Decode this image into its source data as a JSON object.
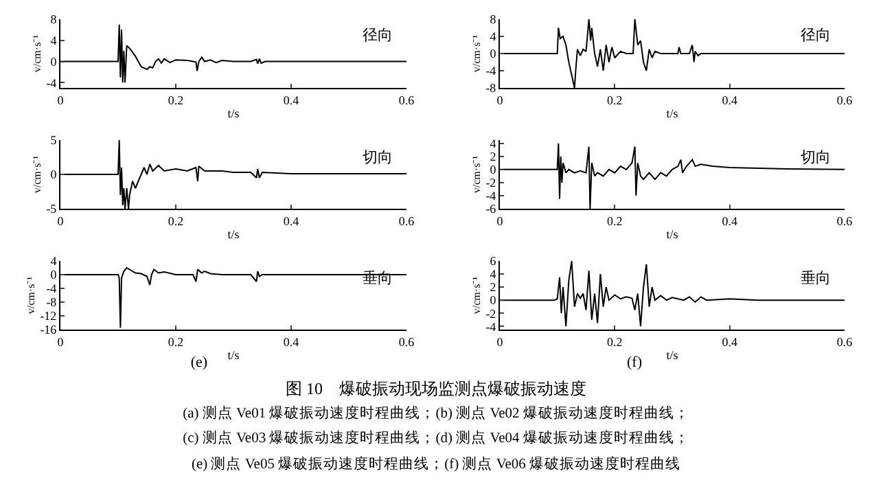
{
  "chart_data": [
    {
      "type": "line",
      "xlabel": "t/s",
      "ylabel": "v/cm·s⁻¹",
      "annotations": [
        "径向"
      ],
      "xlim": [
        0,
        0.6
      ],
      "xticks": [
        0,
        0.2,
        0.4,
        0.6
      ],
      "ylim": [
        -5,
        8
      ],
      "yticks": [
        -4,
        0,
        4,
        8
      ],
      "x": [
        0,
        0.1,
        0.102,
        0.104,
        0.106,
        0.108,
        0.11,
        0.112,
        0.115,
        0.12,
        0.13,
        0.14,
        0.15,
        0.155,
        0.16,
        0.165,
        0.17,
        0.175,
        0.18,
        0.19,
        0.2,
        0.22,
        0.235,
        0.237,
        0.24,
        0.245,
        0.25,
        0.26,
        0.27,
        0.28,
        0.3,
        0.33,
        0.34,
        0.342,
        0.345,
        0.348,
        0.355,
        0.6
      ],
      "series": [
        {
          "color": "#000000",
          "values": [
            0,
            0,
            7,
            -3,
            6,
            -4,
            2,
            -4,
            3,
            2.5,
            1,
            -1,
            -1.5,
            -1,
            -1.2,
            0,
            0.5,
            -0.3,
            0.5,
            -0.2,
            0.3,
            0.2,
            -0.1,
            -1.8,
            0,
            0.8,
            0,
            0.3,
            -0.2,
            0.2,
            0,
            0,
            0.4,
            -0.4,
            0.5,
            -0.3,
            0,
            0
          ]
        }
      ]
    },
    {
      "type": "line",
      "xlabel": "t/s",
      "ylabel": "v/cm·s⁻¹",
      "annotations": [
        "径向"
      ],
      "xlim": [
        0,
        0.6
      ],
      "xticks": [
        0,
        0.2,
        0.4,
        0.6
      ],
      "ylim": [
        -8,
        8
      ],
      "yticks": [
        -8,
        -4,
        0,
        4,
        8
      ],
      "x": [
        0,
        0.1,
        0.102,
        0.105,
        0.11,
        0.115,
        0.12,
        0.125,
        0.13,
        0.132,
        0.135,
        0.14,
        0.145,
        0.15,
        0.155,
        0.158,
        0.16,
        0.165,
        0.17,
        0.175,
        0.18,
        0.185,
        0.19,
        0.195,
        0.2,
        0.21,
        0.22,
        0.232,
        0.235,
        0.24,
        0.245,
        0.25,
        0.255,
        0.26,
        0.265,
        0.27,
        0.28,
        0.31,
        0.312,
        0.315,
        0.33,
        0.335,
        0.338,
        0.34,
        0.345,
        0.35,
        0.6
      ],
      "series": [
        {
          "color": "#000000",
          "values": [
            0,
            0,
            6,
            3.5,
            4,
            2,
            -2,
            -5,
            -8,
            -4,
            1,
            -0.5,
            1,
            0.5,
            8,
            3,
            6,
            0,
            -3,
            1,
            -4,
            2,
            -2,
            1.5,
            -1,
            0.5,
            0,
            0,
            8,
            2,
            3,
            -2,
            -4,
            1,
            -1,
            0.5,
            0,
            0,
            1.5,
            0,
            0,
            2,
            -2,
            0.5,
            -0.5,
            0,
            0
          ]
        }
      ]
    },
    {
      "type": "line",
      "xlabel": "t/s",
      "ylabel": "v/cm·s⁻¹",
      "annotations": [
        "切向"
      ],
      "xlim": [
        0,
        0.6
      ],
      "xticks": [
        0,
        0.2,
        0.4,
        0.6
      ],
      "ylim": [
        -5,
        5
      ],
      "yticks": [
        -5,
        0,
        5
      ],
      "x": [
        0,
        0.1,
        0.102,
        0.104,
        0.106,
        0.108,
        0.11,
        0.112,
        0.115,
        0.118,
        0.12,
        0.125,
        0.13,
        0.14,
        0.145,
        0.15,
        0.155,
        0.16,
        0.17,
        0.18,
        0.2,
        0.22,
        0.235,
        0.238,
        0.24,
        0.25,
        0.28,
        0.3,
        0.33,
        0.34,
        0.342,
        0.345,
        0.35,
        0.4,
        0.6
      ],
      "series": [
        {
          "color": "#000000",
          "values": [
            0,
            0,
            5,
            -3,
            1,
            -4.5,
            -2,
            -5,
            -2,
            -5,
            -3,
            -1,
            -2,
            0,
            1,
            0,
            1.5,
            0.5,
            1.3,
            0.5,
            0.8,
            0.5,
            1,
            -1,
            1.2,
            0.5,
            0.5,
            0.3,
            0.3,
            -0.5,
            0.8,
            -0.5,
            0.3,
            0.1,
            0.1
          ]
        }
      ]
    },
    {
      "type": "line",
      "xlabel": "t/s",
      "ylabel": "v/cm·s⁻¹",
      "annotations": [
        "切向"
      ],
      "xlim": [
        0,
        0.6
      ],
      "xticks": [
        0,
        0.2,
        0.4,
        0.6
      ],
      "ylim": [
        -6,
        4.5
      ],
      "yticks": [
        -6,
        -4,
        -2,
        0,
        2,
        4
      ],
      "x": [
        0,
        0.1,
        0.102,
        0.104,
        0.106,
        0.108,
        0.11,
        0.115,
        0.12,
        0.13,
        0.14,
        0.15,
        0.155,
        0.157,
        0.16,
        0.165,
        0.17,
        0.18,
        0.19,
        0.2,
        0.21,
        0.22,
        0.23,
        0.235,
        0.237,
        0.24,
        0.245,
        0.25,
        0.26,
        0.27,
        0.28,
        0.29,
        0.3,
        0.31,
        0.315,
        0.318,
        0.325,
        0.335,
        0.34,
        0.35,
        0.37,
        0.4,
        0.5,
        0.6
      ],
      "series": [
        {
          "color": "#000000",
          "values": [
            0,
            0,
            4,
            -4.5,
            2,
            -2,
            1,
            -0.5,
            0,
            -0.5,
            -0.2,
            -0.5,
            3.5,
            -6,
            1,
            -1,
            -0.5,
            -1,
            0,
            -0.5,
            0.5,
            0,
            1,
            3.5,
            -4,
            1,
            -1,
            -1.5,
            -0.5,
            -1.5,
            -0.5,
            -1,
            0,
            0.5,
            1.5,
            -0.5,
            0.5,
            1.5,
            0.5,
            0.8,
            0.5,
            0.3,
            0.1,
            0
          ]
        }
      ]
    },
    {
      "type": "line",
      "xlabel": "t/s",
      "ylabel": "v/cm·s⁻¹",
      "annotations": [
        "垂向",
        "(e)"
      ],
      "xlim": [
        0,
        0.6
      ],
      "xticks": [
        0,
        0.2,
        0.4,
        0.6
      ],
      "ylim": [
        -16,
        4
      ],
      "yticks": [
        -16,
        -12,
        -8,
        -4,
        0,
        4
      ],
      "x": [
        0,
        0.1,
        0.102,
        0.104,
        0.106,
        0.11,
        0.115,
        0.12,
        0.13,
        0.14,
        0.15,
        0.155,
        0.158,
        0.162,
        0.17,
        0.18,
        0.2,
        0.23,
        0.235,
        0.238,
        0.245,
        0.25,
        0.26,
        0.28,
        0.33,
        0.34,
        0.342,
        0.345,
        0.35,
        0.6
      ],
      "series": [
        {
          "color": "#000000",
          "values": [
            0,
            0,
            -1,
            -15.5,
            -1,
            1,
            2,
            1.5,
            0.5,
            0.3,
            -0.5,
            -3,
            0,
            1.5,
            0.5,
            0.8,
            0,
            0,
            -2,
            1.5,
            0.5,
            1,
            0.3,
            0,
            0,
            -2,
            1,
            -0.5,
            0,
            0
          ]
        }
      ]
    },
    {
      "type": "line",
      "xlabel": "t/s",
      "ylabel": "v/cm·s⁻¹",
      "annotations": [
        "垂向",
        "(f)",
        "(a) 测点 Ve01 爆破振动速度时程曲线；(b) 测点 Ve02 爆破振动速度时程曲线；",
        "(c) 测点 Ve03 爆破振动速度时程曲线；(d) 测点 Ve04 爆破振动速度时程曲线；",
        "(e) 测点 Ve05 爆破振动速度时程曲线；(f) 测点 Ve06 爆破振动速度时程曲线"
      ],
      "title": "图 10　爆破振动现场监测点爆破振动速度",
      "xlim": [
        0,
        0.6
      ],
      "xticks": [
        0,
        0.2,
        0.4,
        0.6
      ],
      "ylim": [
        -4.5,
        6
      ],
      "yticks": [
        -4,
        -2,
        0,
        2,
        4,
        6
      ],
      "x": [
        0,
        0.095,
        0.1,
        0.104,
        0.107,
        0.11,
        0.115,
        0.12,
        0.125,
        0.13,
        0.135,
        0.14,
        0.145,
        0.15,
        0.155,
        0.16,
        0.165,
        0.17,
        0.175,
        0.18,
        0.185,
        0.19,
        0.2,
        0.21,
        0.22,
        0.23,
        0.235,
        0.24,
        0.245,
        0.25,
        0.255,
        0.26,
        0.265,
        0.27,
        0.28,
        0.29,
        0.3,
        0.32,
        0.33,
        0.34,
        0.35,
        0.36,
        0.4,
        0.45,
        0.6
      ],
      "series": [
        {
          "color": "#000000",
          "values": [
            0,
            0,
            0.2,
            3.5,
            -2,
            2,
            -4,
            3,
            6,
            -1,
            1,
            0.3,
            1,
            -1.5,
            4.5,
            -3,
            1,
            -3.5,
            4,
            -1,
            2,
            0,
            0.8,
            0.2,
            0.5,
            0.3,
            -1.5,
            1,
            -4,
            2,
            5.5,
            -1,
            2,
            0,
            0.7,
            0,
            0.4,
            0,
            0.5,
            -0.3,
            0.5,
            0,
            0.2,
            0,
            0
          ]
        }
      ]
    }
  ]
}
